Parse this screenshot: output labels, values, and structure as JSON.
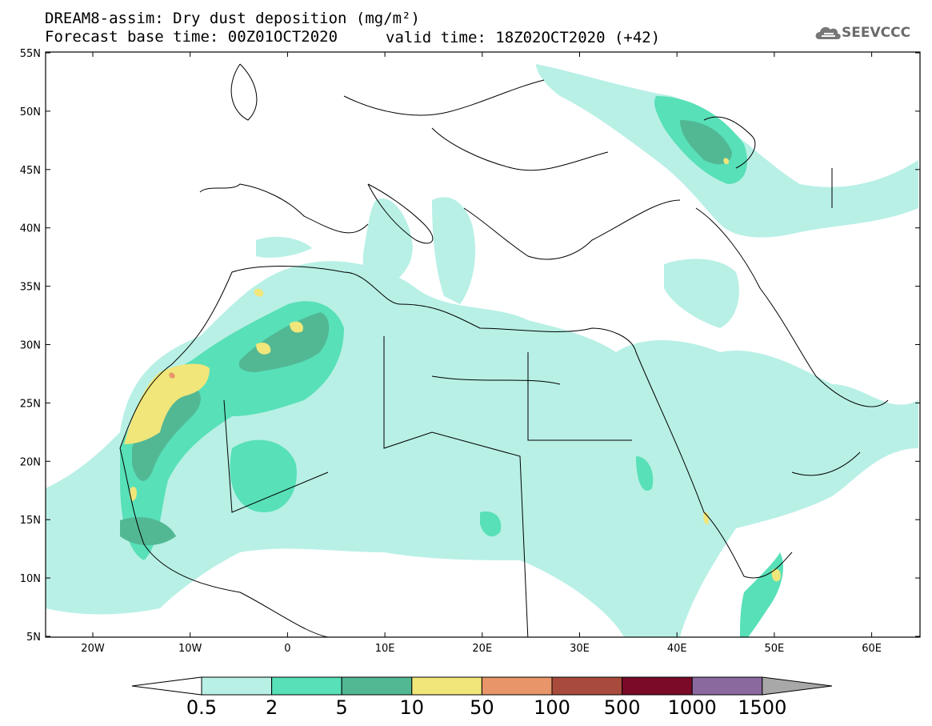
{
  "header": {
    "title": "DREAM8-assim: Dry dust deposition (mg/m²)",
    "base_time": "Forecast base time: 00Z01OCT2020",
    "valid_time": "valid time: 18Z02OCT2020 (+42)"
  },
  "logo": {
    "text": "SEEVCCC",
    "icon": "cloud-icon"
  },
  "axes": {
    "lat_labels": [
      "55N",
      "50N",
      "45N",
      "40N",
      "35N",
      "30N",
      "25N",
      "20N",
      "15N",
      "10N",
      "5N"
    ],
    "lon_labels": [
      "20W",
      "10W",
      "0",
      "10E",
      "20E",
      "30E",
      "40E",
      "50E",
      "60E"
    ]
  },
  "colorbar": {
    "labels": [
      "0.5",
      "2",
      "5",
      "10",
      "50",
      "100",
      "500",
      "1000",
      "1500"
    ],
    "colors": [
      "#ffffff",
      "#b8f0e6",
      "#58e0b8",
      "#52b894",
      "#f0e67a",
      "#e8956a",
      "#a94b3c",
      "#7a0a28",
      "#8a6a9e",
      "#a8a8a8"
    ]
  }
}
